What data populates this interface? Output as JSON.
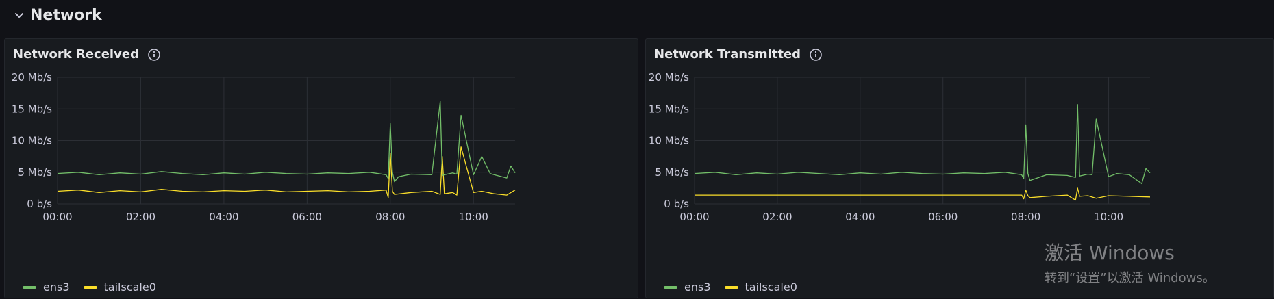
{
  "row": {
    "title": "Network"
  },
  "panels": [
    {
      "title": "Network Received",
      "legend": [
        {
          "label": "ens3",
          "color": "#73bf69"
        },
        {
          "label": "tailscale0",
          "color": "#fade2a"
        }
      ]
    },
    {
      "title": "Network Transmitted",
      "legend": [
        {
          "label": "ens3",
          "color": "#73bf69"
        },
        {
          "label": "tailscale0",
          "color": "#fade2a"
        }
      ]
    }
  ],
  "watermark": {
    "line1": "激活 Windows",
    "line2": "转到“设置”以激活 Windows。"
  },
  "chart_data": [
    {
      "type": "line",
      "title": "Network Received",
      "y_ticks": [
        "0 b/s",
        "5 Mb/s",
        "10 Mb/s",
        "15 Mb/s",
        "20 Mb/s"
      ],
      "x_ticks": [
        "00:00",
        "02:00",
        "04:00",
        "06:00",
        "08:00",
        "10:00"
      ],
      "ylim": [
        0,
        20
      ],
      "xlim": [
        0,
        11
      ],
      "series": [
        {
          "name": "ens3",
          "color": "#73bf69",
          "x": [
            0,
            0.5,
            1,
            1.5,
            2,
            2.5,
            3,
            3.5,
            4,
            4.5,
            5,
            5.5,
            6,
            6.5,
            7,
            7.5,
            7.9,
            7.95,
            8.0,
            8.05,
            8.1,
            8.2,
            8.5,
            9.0,
            9.2,
            9.25,
            9.3,
            9.5,
            9.6,
            9.7,
            10.0,
            10.2,
            10.4,
            10.5,
            10.8,
            10.9,
            11.0
          ],
          "y": [
            4.8,
            5.0,
            4.6,
            4.9,
            4.7,
            5.1,
            4.8,
            4.6,
            4.9,
            4.7,
            5.0,
            4.8,
            4.7,
            4.9,
            4.8,
            5.0,
            4.6,
            4.0,
            12.7,
            5.0,
            3.5,
            4.3,
            4.7,
            4.6,
            16.2,
            4.5,
            4.6,
            4.9,
            4.7,
            14.0,
            4.6,
            7.5,
            4.8,
            4.6,
            4.1,
            6.0,
            4.9
          ]
        },
        {
          "name": "tailscale0",
          "color": "#fade2a",
          "x": [
            0,
            0.5,
            1,
            1.5,
            2,
            2.5,
            3,
            3.5,
            4,
            4.5,
            5,
            5.5,
            6,
            6.5,
            7,
            7.5,
            7.9,
            7.95,
            8.0,
            8.05,
            8.1,
            8.5,
            9.0,
            9.2,
            9.25,
            9.3,
            9.5,
            9.6,
            9.7,
            10.0,
            10.2,
            10.5,
            10.8,
            11.0
          ],
          "y": [
            2.0,
            2.2,
            1.8,
            2.1,
            1.9,
            2.3,
            2.0,
            1.9,
            2.1,
            2.0,
            2.2,
            1.9,
            2.0,
            2.1,
            1.9,
            2.0,
            2.2,
            1.0,
            8.0,
            2.0,
            1.5,
            1.8,
            2.0,
            1.5,
            7.5,
            1.6,
            1.8,
            1.4,
            9.0,
            1.8,
            2.0,
            1.6,
            1.4,
            2.2
          ]
        }
      ]
    },
    {
      "type": "line",
      "title": "Network Transmitted",
      "y_ticks": [
        "0 b/s",
        "5 Mb/s",
        "10 Mb/s",
        "15 Mb/s",
        "20 Mb/s"
      ],
      "x_ticks": [
        "00:00",
        "02:00",
        "04:00",
        "06:00",
        "08:00",
        "10:00"
      ],
      "ylim": [
        0,
        20
      ],
      "xlim": [
        0,
        11
      ],
      "series": [
        {
          "name": "ens3",
          "color": "#73bf69",
          "x": [
            0,
            0.5,
            1,
            1.5,
            2,
            2.5,
            3,
            3.5,
            4,
            4.5,
            5,
            5.5,
            6,
            6.5,
            7,
            7.5,
            7.9,
            7.95,
            8.0,
            8.05,
            8.1,
            8.5,
            9.0,
            9.2,
            9.25,
            9.3,
            9.5,
            9.6,
            9.7,
            10.0,
            10.2,
            10.5,
            10.8,
            10.9,
            11.0
          ],
          "y": [
            4.8,
            5.0,
            4.6,
            4.9,
            4.7,
            5.0,
            4.8,
            4.6,
            4.9,
            4.7,
            5.0,
            4.8,
            4.7,
            4.9,
            4.8,
            5.0,
            4.6,
            4.0,
            12.5,
            4.8,
            3.7,
            4.6,
            4.5,
            4.2,
            15.7,
            4.4,
            4.7,
            4.6,
            13.4,
            4.3,
            4.8,
            4.6,
            3.2,
            5.6,
            4.9
          ]
        },
        {
          "name": "tailscale0",
          "color": "#fade2a",
          "x": [
            0,
            1,
            2,
            3,
            4,
            5,
            6,
            7,
            7.9,
            7.95,
            8.0,
            8.05,
            8.1,
            8.5,
            9.0,
            9.2,
            9.25,
            9.3,
            9.5,
            9.7,
            10.0,
            10.5,
            11.0
          ],
          "y": [
            1.4,
            1.4,
            1.4,
            1.4,
            1.4,
            1.4,
            1.4,
            1.4,
            1.4,
            0.8,
            2.2,
            1.3,
            1.0,
            1.2,
            1.4,
            0.6,
            2.5,
            1.2,
            1.3,
            0.9,
            1.3,
            1.2,
            1.1
          ]
        }
      ]
    }
  ]
}
